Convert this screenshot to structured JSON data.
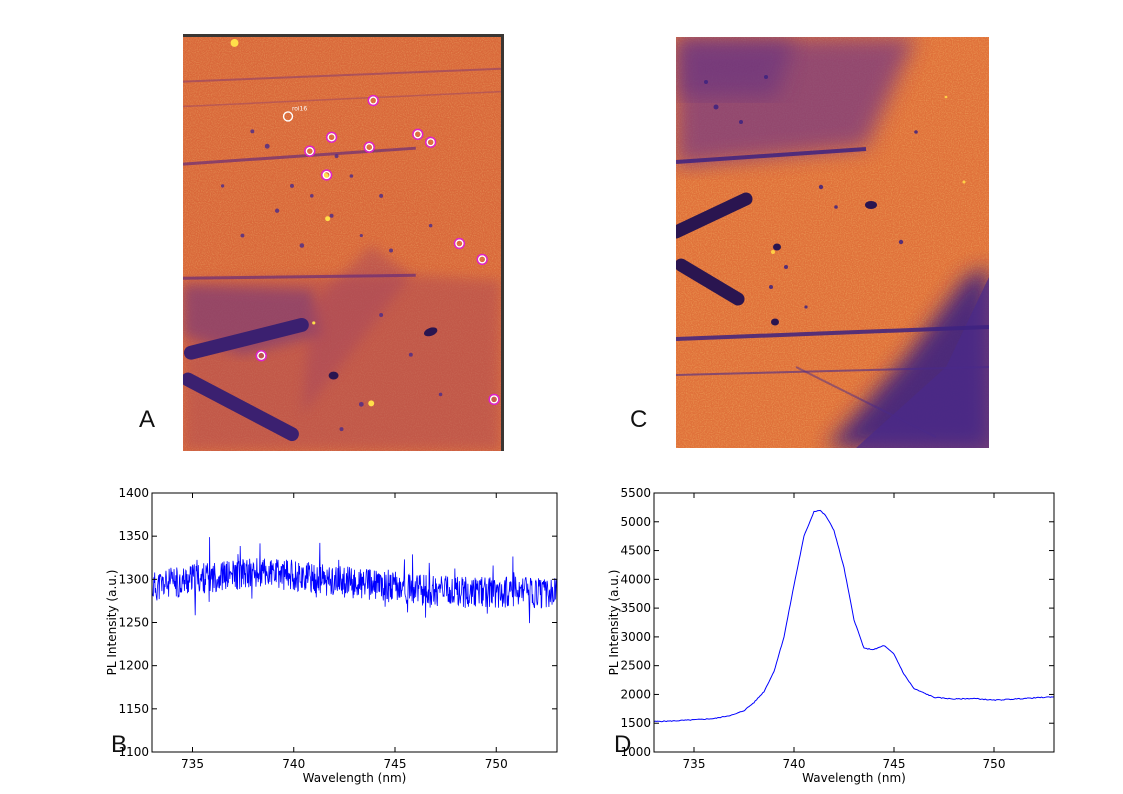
{
  "panels": {
    "a": {
      "letter": "A"
    },
    "b": {
      "letter": "B"
    },
    "c": {
      "letter": "C"
    },
    "d": {
      "letter": "D"
    }
  },
  "map_a": {
    "roi_label": "roi16",
    "colors": {
      "background": "#d9683a",
      "dark": "#4a2a8a",
      "bright": "#ffe04a",
      "roi_marker": "#e020d0",
      "roi_ring": "#ffffff"
    }
  },
  "map_c": {
    "colors": {
      "background": "#e0713a",
      "dark": "#3d2280",
      "bright": "#ffcf45"
    }
  },
  "chart_data": [
    {
      "id": "B",
      "type": "line",
      "xlabel": "Wavelength (nm)",
      "ylabel": "PL Intensity (a.u.)",
      "xlim": [
        733,
        753
      ],
      "ylim": [
        1100,
        1400
      ],
      "xticks": [
        735,
        740,
        745,
        750
      ],
      "yticks": [
        1100,
        1150,
        1200,
        1250,
        1300,
        1350,
        1400
      ],
      "line_color": "#0000ff",
      "series": [
        {
          "x": [
            733,
            734,
            735,
            736,
            737,
            738,
            739,
            740,
            741,
            742,
            743,
            744,
            745,
            746,
            747,
            748,
            749,
            750,
            751,
            752,
            753
          ],
          "values": [
            1291,
            1296,
            1300,
            1303,
            1305,
            1307,
            1306,
            1305,
            1301,
            1298,
            1296,
            1293,
            1291,
            1288,
            1287,
            1286,
            1286,
            1285,
            1285,
            1284,
            1284
          ],
          "noise_amplitude": 18
        }
      ]
    },
    {
      "id": "D",
      "type": "line",
      "xlabel": "Wavelength (nm)",
      "ylabel": "PL Intensity (a.u.)",
      "xlim": [
        733,
        753
      ],
      "ylim": [
        1000,
        5500
      ],
      "xticks": [
        735,
        740,
        745,
        750
      ],
      "yticks": [
        1000,
        1500,
        2000,
        2500,
        3000,
        3500,
        4000,
        4500,
        5000,
        5500
      ],
      "line_color": "#0000ff",
      "series": [
        {
          "x": [
            733,
            734,
            735,
            736,
            737,
            737.5,
            738,
            738.5,
            739,
            739.5,
            740,
            740.5,
            741,
            741.3,
            741.6,
            742,
            742.5,
            743,
            743.5,
            744,
            744.5,
            745,
            745.5,
            746,
            747,
            748,
            749,
            750,
            751,
            752,
            753
          ],
          "values": [
            1530,
            1540,
            1560,
            1580,
            1650,
            1720,
            1860,
            2050,
            2400,
            3000,
            3900,
            4750,
            5180,
            5200,
            5100,
            4850,
            4200,
            3300,
            2800,
            2780,
            2850,
            2700,
            2350,
            2100,
            1950,
            1920,
            1930,
            1900,
            1920,
            1940,
            1960
          ],
          "noise_amplitude": 15
        }
      ]
    }
  ]
}
